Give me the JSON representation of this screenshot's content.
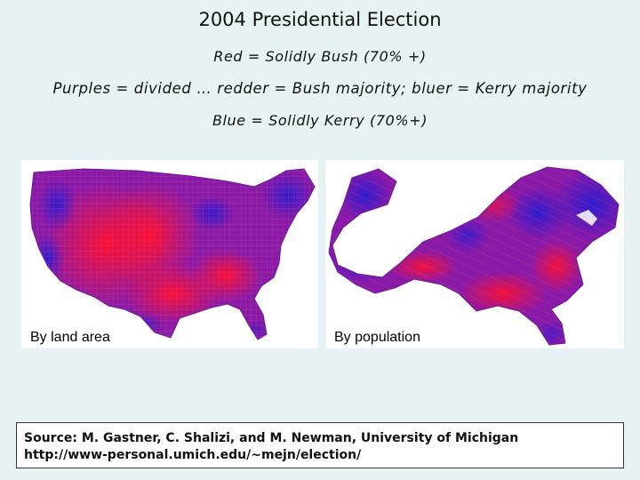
{
  "header": {
    "title": "2004 Presidential Election",
    "legend_red": "Red = Solidly Bush (70% +)",
    "legend_purple": "Purples = divided … redder = Bush majority; bluer = Kerry majority",
    "legend_blue": "Blue = Solidly Kerry (70%+)"
  },
  "maps": {
    "land_label": "By land area",
    "population_label": "By population"
  },
  "colors": {
    "solid_bush": "#ff1030",
    "solid_kerry": "#2a1cd0",
    "divided": "#8a1aa8",
    "background": "#e6f2f4"
  },
  "source": {
    "line1": "Source: M. Gastner, C. Shalizi, and M. Newman, University of Michigan",
    "line2": "http://www-personal.umich.edu/~mejn/election/"
  }
}
